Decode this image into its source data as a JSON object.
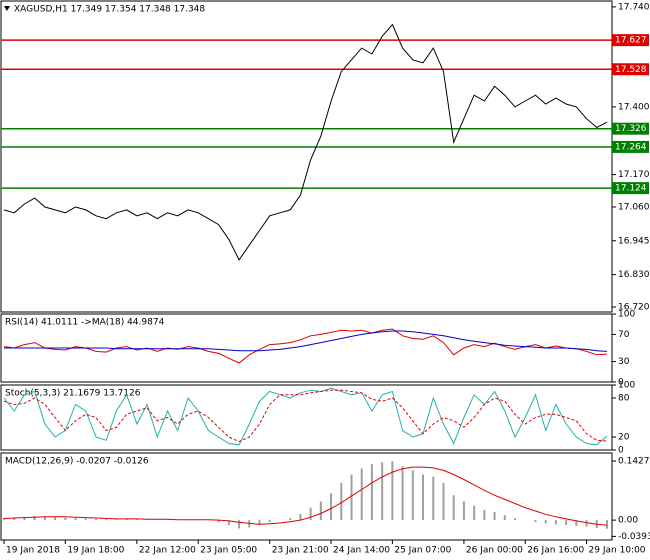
{
  "chart_data": [
    {
      "type": "line",
      "title": "XAGUSD,H1  17.349 17.354 17.348 17.348",
      "color": "#000000",
      "categories": [
        "19 Jan 2018",
        null,
        null,
        null,
        null,
        null,
        "19 Jan 18:00",
        null,
        null,
        null,
        null,
        null,
        null,
        "22 Jan 12:00",
        null,
        null,
        null,
        null,
        null,
        "23 Jan 05:00",
        null,
        null,
        null,
        null,
        null,
        null,
        "23 Jan 21:00",
        null,
        null,
        null,
        null,
        null,
        "24 Jan 14:00",
        null,
        null,
        null,
        null,
        null,
        "25 Jan 07:00",
        null,
        null,
        null,
        null,
        null,
        null,
        "26 Jan 00:00",
        null,
        null,
        null,
        null,
        null,
        "26 Jan 16:00",
        null,
        null,
        null,
        null,
        null,
        "29 Jan 10:00",
        null,
        null
      ],
      "values": [
        17.05,
        17.04,
        17.07,
        17.09,
        17.06,
        17.05,
        17.04,
        17.06,
        17.05,
        17.03,
        17.02,
        17.04,
        17.05,
        17.03,
        17.04,
        17.02,
        17.04,
        17.03,
        17.05,
        17.04,
        17.02,
        17.0,
        16.95,
        16.88,
        16.93,
        16.98,
        17.03,
        17.04,
        17.05,
        17.1,
        17.22,
        17.3,
        17.42,
        17.52,
        17.56,
        17.6,
        17.58,
        17.64,
        17.68,
        17.6,
        17.56,
        17.55,
        17.6,
        17.52,
        17.28,
        17.36,
        17.44,
        17.42,
        17.47,
        17.44,
        17.4,
        17.42,
        17.44,
        17.41,
        17.43,
        17.41,
        17.4,
        17.36,
        17.33,
        17.348
      ],
      "levels": [
        {
          "value": 17.627,
          "color": "#e00000"
        },
        {
          "value": 17.528,
          "color": "#e00000"
        },
        {
          "value": 17.326,
          "color": "#008000"
        },
        {
          "value": 17.264,
          "color": "#008000"
        },
        {
          "value": 17.124,
          "color": "#008000"
        }
      ],
      "ylim": [
        16.703,
        17.76
      ],
      "yticks": [
        {
          "value": 17.74,
          "label": "17.740"
        },
        {
          "value": 17.4,
          "label": "17.400"
        },
        {
          "value": 17.17,
          "label": "17.170"
        },
        {
          "value": 17.06,
          "label": "17.060"
        },
        16.945,
        {
          "value": 16.83,
          "label": "16.830"
        },
        {
          "value": 16.72,
          "label": "16.720"
        }
      ]
    },
    {
      "type": "line",
      "title": "RSI(14) 41.0111 ->MA(18) 44.9874",
      "series": [
        {
          "color": "#e00000",
          "values": [
            52,
            50,
            55,
            58,
            50,
            48,
            47,
            52,
            50,
            45,
            44,
            50,
            52,
            47,
            50,
            45,
            50,
            48,
            52,
            50,
            45,
            42,
            35,
            28,
            40,
            48,
            55,
            56,
            58,
            62,
            68,
            70,
            73,
            76,
            75,
            76,
            72,
            76,
            78,
            68,
            64,
            63,
            68,
            58,
            40,
            50,
            55,
            52,
            57,
            52,
            48,
            52,
            55,
            50,
            53,
            50,
            49,
            45,
            40,
            41
          ]
        },
        {
          "color": "#0000cc",
          "values": [
            50,
            50,
            50,
            50,
            50,
            50,
            50,
            50,
            50,
            50,
            50,
            49,
            49,
            49,
            49,
            49,
            49,
            49,
            49,
            49,
            49,
            48,
            47,
            46,
            46,
            46,
            47,
            48,
            50,
            52,
            55,
            58,
            61,
            64,
            67,
            70,
            72,
            74,
            75,
            75,
            74,
            72,
            70,
            68,
            65,
            62,
            60,
            58,
            56,
            54,
            53,
            52,
            51,
            50,
            50,
            50,
            49,
            48,
            46,
            45
          ]
        }
      ],
      "ylim": [
        0,
        100
      ],
      "yticks": [
        100,
        70,
        30,
        0
      ]
    },
    {
      "type": "line",
      "title": "Stoch(5,3,3) 21.1679 13.7126",
      "series": [
        {
          "color": "#20b2aa",
          "values": [
            80,
            60,
            85,
            90,
            40,
            20,
            30,
            70,
            60,
            20,
            15,
            60,
            85,
            40,
            70,
            20,
            60,
            30,
            80,
            60,
            30,
            20,
            10,
            8,
            40,
            75,
            90,
            85,
            80,
            88,
            92,
            90,
            95,
            90,
            85,
            88,
            60,
            85,
            90,
            30,
            20,
            25,
            80,
            40,
            10,
            50,
            85,
            70,
            90,
            60,
            20,
            50,
            85,
            30,
            70,
            40,
            20,
            10,
            8,
            21.1679
          ]
        },
        {
          "color": "#e00000",
          "dashed": true,
          "values": [
            75,
            70,
            72,
            80,
            70,
            50,
            30,
            45,
            55,
            50,
            30,
            35,
            55,
            60,
            65,
            45,
            50,
            40,
            55,
            60,
            50,
            35,
            20,
            13,
            20,
            40,
            70,
            85,
            85,
            85,
            88,
            90,
            92,
            92,
            90,
            88,
            78,
            75,
            80,
            65,
            45,
            25,
            40,
            50,
            45,
            35,
            50,
            70,
            80,
            75,
            55,
            40,
            50,
            55,
            55,
            50,
            45,
            25,
            15,
            13.7126
          ]
        }
      ],
      "ylim": [
        0,
        100
      ],
      "yticks": [
        100,
        80,
        20,
        0
      ]
    },
    {
      "type": "bar",
      "title": "MACD(12,26,9) -0.0207 -0.0126",
      "series": [
        {
          "type": "bar",
          "color": "#a0a0a0",
          "values": [
            0.005,
            0.006,
            0.008,
            0.01,
            0.009,
            0.008,
            0.006,
            0.005,
            0.004,
            0.003,
            0.002,
            0.002,
            0.003,
            0.002,
            0.002,
            0.001,
            0.001,
            0.001,
            0.002,
            0.001,
            0,
            -0.005,
            -0.012,
            -0.02,
            -0.018,
            -0.012,
            -0.005,
            0,
            0.005,
            0.015,
            0.03,
            0.045,
            0.065,
            0.09,
            0.11,
            0.125,
            0.135,
            0.14,
            0.142,
            0.13,
            0.12,
            0.11,
            0.105,
            0.09,
            0.06,
            0.045,
            0.035,
            0.025,
            0.02,
            0.012,
            0.005,
            0,
            -0.005,
            -0.008,
            -0.01,
            -0.012,
            -0.014,
            -0.016,
            -0.019,
            -0.0207
          ]
        },
        {
          "type": "line",
          "color": "#e00000",
          "values": [
            0.004,
            0.005,
            0.006,
            0.007,
            0.008,
            0.008,
            0.008,
            0.007,
            0.006,
            0.005,
            0.004,
            0.003,
            0.003,
            0.003,
            0.002,
            0.002,
            0.002,
            0.001,
            0.001,
            0.001,
            0.001,
            0,
            -0.002,
            -0.005,
            -0.008,
            -0.01,
            -0.009,
            -0.007,
            -0.004,
            0,
            0.007,
            0.016,
            0.028,
            0.042,
            0.058,
            0.074,
            0.09,
            0.104,
            0.116,
            0.124,
            0.128,
            0.128,
            0.126,
            0.12,
            0.11,
            0.098,
            0.085,
            0.072,
            0.06,
            0.05,
            0.04,
            0.03,
            0.022,
            0.014,
            0.008,
            0.003,
            -0.002,
            -0.006,
            -0.01,
            -0.0126
          ]
        }
      ],
      "ylim": [
        -0.048,
        0.162
      ],
      "yticks": [
        0.1427,
        {
          "value": 0,
          "label": "0.00"
        },
        -0.0393
      ]
    }
  ]
}
